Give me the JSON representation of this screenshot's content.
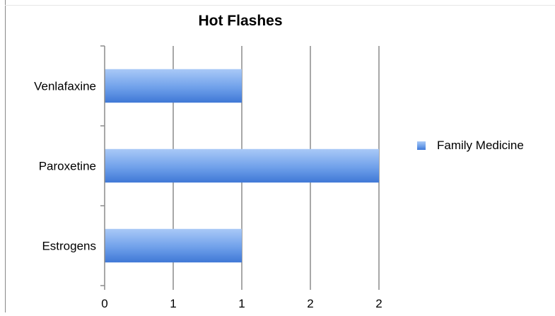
{
  "chart_data": {
    "type": "bar",
    "orientation": "horizontal",
    "title": "Hot Flashes",
    "categories": [
      "Venlafaxine",
      "Paroxetine",
      "Estrogens"
    ],
    "series": [
      {
        "name": "Family Medicine",
        "values": [
          1,
          2,
          1
        ],
        "color": "#5b8fe0"
      }
    ],
    "x_tick_labels": [
      "0",
      "1",
      "1",
      "2",
      "2"
    ],
    "xlim": [
      0,
      2
    ],
    "xlabel": "",
    "ylabel": "",
    "grid": true,
    "legend_position": "right"
  }
}
